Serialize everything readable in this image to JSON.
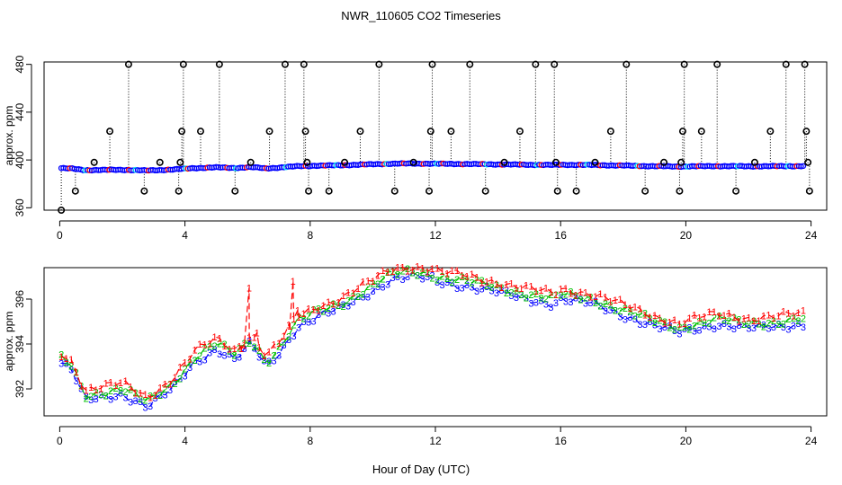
{
  "title": "NWR_110605  CO2 Timeseries",
  "chart_data": [
    {
      "type": "scatter",
      "panel": "top",
      "ylabel": "approx. ppm",
      "xlabel": "",
      "xlim": [
        -0.5,
        24.5
      ],
      "ylim": [
        358,
        482
      ],
      "xticks": [
        0,
        4,
        8,
        12,
        16,
        20,
        24
      ],
      "yticks": [
        360,
        400,
        440,
        480
      ],
      "flag_marker": "circle",
      "flagged_points": [
        {
          "x": 0.05,
          "y": 358
        },
        {
          "x": 0.5,
          "y": 374
        },
        {
          "x": 1.1,
          "y": 398
        },
        {
          "x": 1.6,
          "y": 424
        },
        {
          "x": 2.2,
          "y": 480
        },
        {
          "x": 2.7,
          "y": 374
        },
        {
          "x": 3.2,
          "y": 398
        },
        {
          "x": 3.8,
          "y": 374
        },
        {
          "x": 3.85,
          "y": 398
        },
        {
          "x": 3.9,
          "y": 424
        },
        {
          "x": 3.95,
          "y": 480
        },
        {
          "x": 4.5,
          "y": 424
        },
        {
          "x": 5.1,
          "y": 480
        },
        {
          "x": 5.6,
          "y": 374
        },
        {
          "x": 6.1,
          "y": 398
        },
        {
          "x": 6.7,
          "y": 424
        },
        {
          "x": 7.2,
          "y": 480
        },
        {
          "x": 7.8,
          "y": 480
        },
        {
          "x": 7.85,
          "y": 424
        },
        {
          "x": 7.9,
          "y": 398
        },
        {
          "x": 7.95,
          "y": 374
        },
        {
          "x": 8.6,
          "y": 374
        },
        {
          "x": 9.1,
          "y": 398
        },
        {
          "x": 9.6,
          "y": 424
        },
        {
          "x": 10.2,
          "y": 480
        },
        {
          "x": 10.7,
          "y": 374
        },
        {
          "x": 11.3,
          "y": 398
        },
        {
          "x": 11.8,
          "y": 374
        },
        {
          "x": 11.85,
          "y": 424
        },
        {
          "x": 11.9,
          "y": 480
        },
        {
          "x": 12.5,
          "y": 424
        },
        {
          "x": 13.1,
          "y": 480
        },
        {
          "x": 13.6,
          "y": 374
        },
        {
          "x": 14.2,
          "y": 398
        },
        {
          "x": 14.7,
          "y": 424
        },
        {
          "x": 15.2,
          "y": 480
        },
        {
          "x": 15.8,
          "y": 480
        },
        {
          "x": 15.85,
          "y": 398
        },
        {
          "x": 15.9,
          "y": 374
        },
        {
          "x": 16.5,
          "y": 374
        },
        {
          "x": 17.1,
          "y": 398
        },
        {
          "x": 17.6,
          "y": 424
        },
        {
          "x": 18.1,
          "y": 480
        },
        {
          "x": 18.7,
          "y": 374
        },
        {
          "x": 19.3,
          "y": 398
        },
        {
          "x": 19.8,
          "y": 374
        },
        {
          "x": 19.85,
          "y": 398
        },
        {
          "x": 19.9,
          "y": 424
        },
        {
          "x": 19.95,
          "y": 480
        },
        {
          "x": 20.5,
          "y": 424
        },
        {
          "x": 21.0,
          "y": 480
        },
        {
          "x": 21.6,
          "y": 374
        },
        {
          "x": 22.2,
          "y": 398
        },
        {
          "x": 22.7,
          "y": 424
        },
        {
          "x": 23.2,
          "y": 480
        },
        {
          "x": 23.8,
          "y": 480
        },
        {
          "x": 23.85,
          "y": 424
        },
        {
          "x": 23.9,
          "y": 398
        },
        {
          "x": 23.95,
          "y": 374
        }
      ],
      "baseline_keypoints": [
        {
          "x": 0.0,
          "y": 393.2
        },
        {
          "x": 0.4,
          "y": 392.8
        },
        {
          "x": 0.8,
          "y": 391.5
        },
        {
          "x": 2.0,
          "y": 391.8
        },
        {
          "x": 2.8,
          "y": 391.2
        },
        {
          "x": 3.6,
          "y": 392.0
        },
        {
          "x": 4.3,
          "y": 393.2
        },
        {
          "x": 5.0,
          "y": 393.8
        },
        {
          "x": 5.6,
          "y": 393.3
        },
        {
          "x": 6.1,
          "y": 394.0
        },
        {
          "x": 6.6,
          "y": 393.0
        },
        {
          "x": 7.0,
          "y": 393.6
        },
        {
          "x": 7.6,
          "y": 394.8
        },
        {
          "x": 8.2,
          "y": 395.2
        },
        {
          "x": 9.0,
          "y": 395.6
        },
        {
          "x": 10.0,
          "y": 396.4
        },
        {
          "x": 10.6,
          "y": 396.9
        },
        {
          "x": 11.2,
          "y": 397.0
        },
        {
          "x": 11.9,
          "y": 396.9
        },
        {
          "x": 12.0,
          "y": 396.8
        },
        {
          "x": 13.0,
          "y": 396.6
        },
        {
          "x": 14.0,
          "y": 396.3
        },
        {
          "x": 15.0,
          "y": 396.0
        },
        {
          "x": 15.8,
          "y": 395.8
        },
        {
          "x": 16.0,
          "y": 396.0
        },
        {
          "x": 17.0,
          "y": 395.8
        },
        {
          "x": 18.0,
          "y": 395.3
        },
        {
          "x": 19.0,
          "y": 394.8
        },
        {
          "x": 19.8,
          "y": 394.5
        },
        {
          "x": 20.0,
          "y": 394.6
        },
        {
          "x": 21.0,
          "y": 394.9
        },
        {
          "x": 22.0,
          "y": 394.7
        },
        {
          "x": 23.0,
          "y": 394.8
        },
        {
          "x": 23.7,
          "y": 394.9
        }
      ]
    },
    {
      "type": "line",
      "panel": "bottom",
      "ylabel": "approx. ppm",
      "xlabel": "Hour of Day (UTC)",
      "xlim": [
        -0.5,
        24.5
      ],
      "ylim": [
        390.8,
        397.4
      ],
      "xticks": [
        0,
        4,
        8,
        12,
        16,
        20,
        24
      ],
      "yticks": [
        392,
        394,
        396
      ],
      "series": [
        {
          "name": "1",
          "marker": "1",
          "color": "#ff0000",
          "offset_ppm": 0.45,
          "spikes": [
            {
              "x": 5.8,
              "y": 393.8
            },
            {
              "x": 6.05,
              "y": 396.5
            },
            {
              "x": 6.3,
              "y": 394.5
            },
            {
              "x": 7.35,
              "y": 394.8
            },
            {
              "x": 7.45,
              "y": 396.8
            },
            {
              "x": 7.6,
              "y": 395.5
            }
          ]
        },
        {
          "name": "2",
          "marker": "2",
          "color": "#00c000",
          "offset_ppm": 0.22
        },
        {
          "name": "3",
          "marker": "3",
          "color": "#0000ff",
          "offset_ppm": 0.0
        }
      ],
      "gaps_at": [
        12.0,
        15.9,
        19.9
      ]
    }
  ],
  "colors": {
    "flag": "#000000",
    "series1": "#ff0000",
    "series2": "#00c000",
    "series3": "#0000ff",
    "cyan": "#00e5ee"
  }
}
